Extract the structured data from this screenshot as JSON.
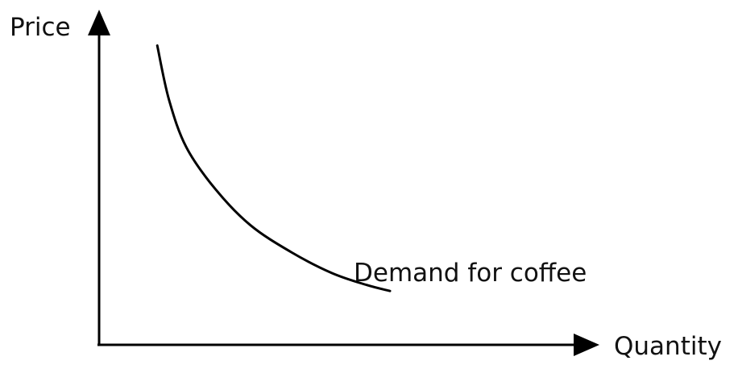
{
  "chart_data": {
    "type": "line",
    "title": "",
    "xlabel": "Quantity",
    "ylabel": "Price",
    "grid": false,
    "series": [
      {
        "name": "Demand for coffee",
        "x": [
          1.0,
          1.2,
          1.5,
          2.0,
          2.6,
          3.3,
          4.0,
          4.6,
          5.0
        ],
        "y": [
          10.0,
          8.2,
          6.6,
          5.2,
          4.0,
          3.1,
          2.4,
          2.0,
          1.8
        ]
      }
    ]
  }
}
